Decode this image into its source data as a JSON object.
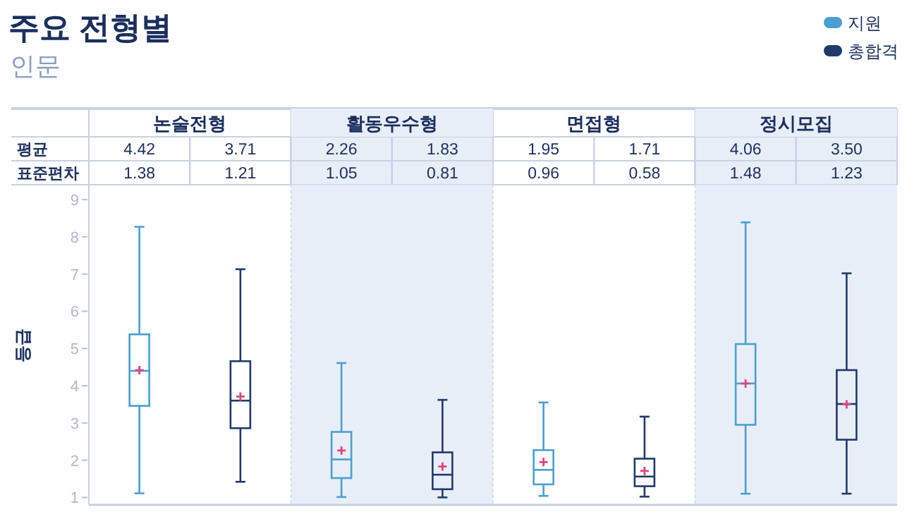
{
  "chart_data": [
    {
      "type": "heatmap",
      "title": "주요 전형별",
      "subtitle": "인문",
      "categories": [
        null,
        null,
        null,
        null,
        null,
        null,
        null,
        null
      ],
      "y_categories": [
        "평균",
        "표준편차"
      ],
      "cell_labels": [
        [
          "4.42",
          "3.71",
          "2.26",
          "1.83",
          "1.95",
          "1.71",
          "4.06",
          "3.50"
        ],
        [
          "1.38",
          "1.21",
          "1.05",
          "0.81",
          "0.96",
          "0.58",
          "1.48",
          "1.23"
        ]
      ],
      "cells": [
        [
          4.42,
          3.71,
          2.26,
          1.83,
          1.95,
          1.71,
          4.06,
          3.5
        ],
        [
          1.38,
          1.21,
          1.05,
          0.81,
          0.96,
          0.58,
          1.48,
          1.23
        ]
      ]
    },
    {
      "type": "box",
      "categories": [
        "논술전형",
        "활동우수형",
        "면접형",
        "정시모집"
      ],
      "ylabel": "등급",
      "ylim": [
        0.8,
        9.4
      ],
      "yticks": [
        1,
        2,
        3,
        4,
        5,
        6,
        7,
        8,
        9
      ],
      "legend": "top right",
      "bands": [
        {
          "axis": "x",
          "from": "활동우수형",
          "to": "활동우수형",
          "color": "#e8eef8"
        },
        {
          "axis": "x",
          "from": "정시모집",
          "to": "정시모집",
          "color": "#e8eef8"
        }
      ],
      "series": [
        {
          "name": "지원",
          "color": "#4a9fd0",
          "boxes": [
            {
              "low": 1.11,
              "q1": 3.46,
              "median": 4.4,
              "q3": 5.38,
              "high": 8.27,
              "mean": 4.42
            },
            {
              "low": 1.01,
              "q1": 1.52,
              "median": 2.02,
              "q3": 2.76,
              "high": 4.61,
              "mean": 2.26
            },
            {
              "low": 1.04,
              "q1": 1.35,
              "median": 1.74,
              "q3": 2.27,
              "high": 3.55,
              "mean": 1.95
            },
            {
              "low": 1.1,
              "q1": 2.95,
              "median": 4.06,
              "q3": 5.12,
              "high": 8.39,
              "mean": 4.06
            }
          ]
        },
        {
          "name": "총합격",
          "color": "#1f3a6b",
          "boxes": [
            {
              "low": 1.42,
              "q1": 2.86,
              "median": 3.6,
              "q3": 4.66,
              "high": 7.13,
              "mean": 3.71
            },
            {
              "low": 1.0,
              "q1": 1.22,
              "median": 1.61,
              "q3": 2.21,
              "high": 3.62,
              "mean": 1.83
            },
            {
              "low": 1.02,
              "q1": 1.3,
              "median": 1.56,
              "q3": 2.04,
              "high": 3.17,
              "mean": 1.71
            },
            {
              "low": 1.1,
              "q1": 2.55,
              "median": 3.51,
              "q3": 4.42,
              "high": 7.02,
              "mean": 3.5
            }
          ]
        }
      ]
    }
  ]
}
